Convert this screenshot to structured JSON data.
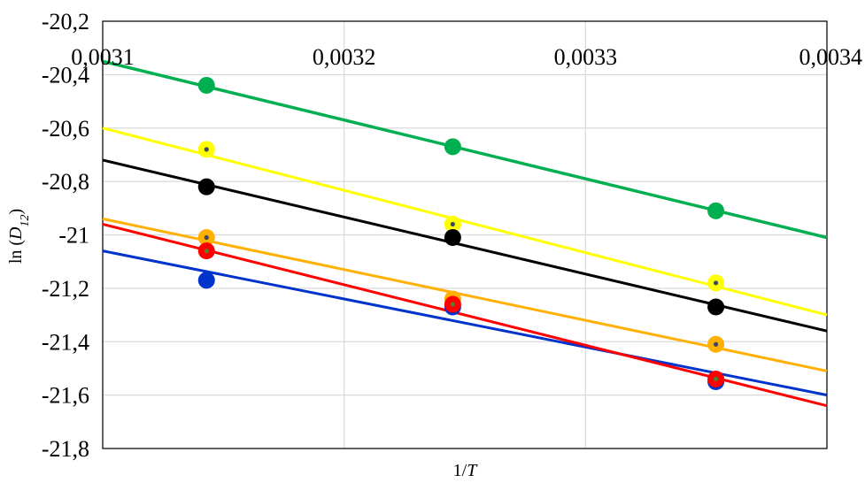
{
  "chart_data": {
    "type": "scatter",
    "title": "",
    "xlabel": "1/T",
    "ylabel": "ln (D12)",
    "xlabel_parts": [
      {
        "text": "1/",
        "italic": false
      },
      {
        "text": "T",
        "italic": true
      }
    ],
    "ylabel_parts": [
      {
        "text": "ln (",
        "italic": false,
        "sub": false
      },
      {
        "text": "D",
        "italic": true,
        "sub": false
      },
      {
        "text": "12",
        "italic": true,
        "sub": true
      },
      {
        "text": ")",
        "italic": false,
        "sub": false
      }
    ],
    "xlim": [
      0.0031,
      0.0034
    ],
    "ylim": [
      -21.8,
      -20.2
    ],
    "x_ticks": [
      {
        "value": 0.0031,
        "label": "0,0031"
      },
      {
        "value": 0.0032,
        "label": "0,0032"
      },
      {
        "value": 0.0033,
        "label": "0,0033"
      },
      {
        "value": 0.0034,
        "label": "0,0034"
      }
    ],
    "y_ticks": [
      {
        "value": -20.2,
        "label": "-20,2"
      },
      {
        "value": -20.4,
        "label": "-20,4"
      },
      {
        "value": -20.6,
        "label": "-20,6"
      },
      {
        "value": -20.8,
        "label": "-20,8"
      },
      {
        "value": -21.0,
        "label": "-21"
      },
      {
        "value": -21.2,
        "label": "-21,2"
      },
      {
        "value": -21.4,
        "label": "-21,4"
      },
      {
        "value": -21.6,
        "label": "-21,6"
      },
      {
        "value": -21.8,
        "label": "-21,8"
      }
    ],
    "x_axis_position": "top",
    "grid": true,
    "legend": "none",
    "series": [
      {
        "color": "#00b050",
        "dot_color": "",
        "x": [
          0.003143,
          0.003245,
          0.003354
        ],
        "y": [
          -20.44,
          -20.67,
          -20.91
        ],
        "trendline": {
          "x": [
            0.0031,
            0.0034
          ],
          "y": [
            -20.35,
            -21.01
          ],
          "width": 3.5
        }
      },
      {
        "color": "#ffff00",
        "dot_color": "#3a4a5a",
        "x": [
          0.003143,
          0.003245,
          0.003354
        ],
        "y": [
          -20.68,
          -20.96,
          -21.18
        ],
        "trendline": {
          "x": [
            0.0031,
            0.0034
          ],
          "y": [
            -20.6,
            -21.3
          ],
          "width": 3
        }
      },
      {
        "color": "#000000",
        "dot_color": "",
        "x": [
          0.003143,
          0.003245,
          0.003354
        ],
        "y": [
          -20.82,
          -21.01,
          -21.27
        ],
        "trendline": {
          "x": [
            0.0031,
            0.0034
          ],
          "y": [
            -20.72,
            -21.36
          ],
          "width": 3
        }
      },
      {
        "color": "#ffb000",
        "dot_color": "#3a4a5a",
        "x": [
          0.003143,
          0.003245,
          0.003354
        ],
        "y": [
          -21.01,
          -21.24,
          -21.41
        ],
        "trendline": {
          "x": [
            0.0031,
            0.0034
          ],
          "y": [
            -20.94,
            -21.51
          ],
          "width": 3
        }
      },
      {
        "color": "#0033cc",
        "dot_color": "",
        "x": [
          0.003143,
          0.003245,
          0.003354
        ],
        "y": [
          -21.17,
          -21.27,
          -21.55
        ],
        "trendline": {
          "x": [
            0.0031,
            0.0034
          ],
          "y": [
            -21.06,
            -21.6
          ],
          "width": 3
        }
      },
      {
        "color": "#ff0000",
        "dot_color": "#508030",
        "x": [
          0.003143,
          0.003245,
          0.003354
        ],
        "y": [
          -21.06,
          -21.26,
          -21.54
        ],
        "trendline": {
          "x": [
            0.0031,
            0.0034
          ],
          "y": [
            -20.96,
            -21.64
          ],
          "width": 3
        }
      }
    ]
  },
  "colors": {
    "grid": "#d9d9d9",
    "frame": "#000000",
    "background": "#ffffff"
  }
}
